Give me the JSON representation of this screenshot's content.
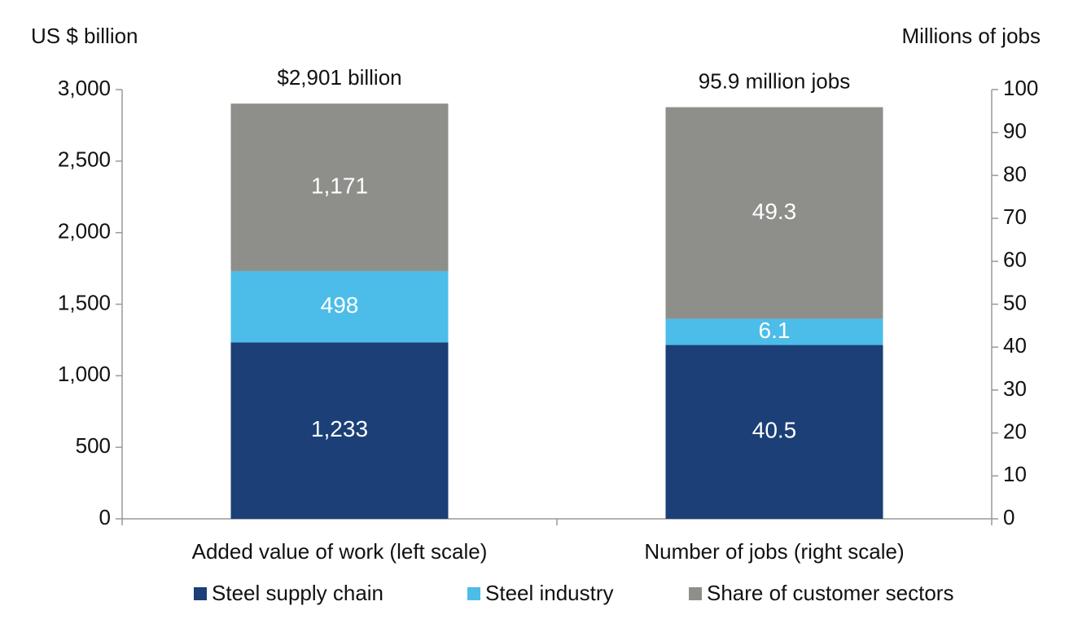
{
  "chart_data": {
    "type": "stacked_bar",
    "y_axis_label": "US $ billion",
    "y2_axis_label": "Millions of jobs",
    "categories": [
      "Added value of work (left scale)",
      "Number of jobs (right scale)"
    ],
    "category_axes": [
      "y",
      "y2"
    ],
    "annotations": [
      "$2,901 billion",
      "95.9 million jobs"
    ],
    "series": [
      {
        "name": "Steel supply chain",
        "color": "#1b3f76",
        "values": [
          1233,
          40.5
        ],
        "value_labels": [
          "1,233",
          "40.5"
        ]
      },
      {
        "name": "Steel industry",
        "color": "#4cbde8",
        "values": [
          498,
          6.1
        ],
        "value_labels": [
          "498",
          "6.1"
        ]
      },
      {
        "name": "Share of customer sectors",
        "color": "#8e8e8a",
        "values": [
          1171,
          49.3
        ],
        "value_labels": [
          "1,171",
          "49.3"
        ]
      }
    ],
    "ylim": [
      0,
      3000
    ],
    "yticks": [
      0,
      500,
      {
        "value": 1000,
        "label": "1,000"
      },
      {
        "value": 1500,
        "label": "1,500"
      },
      {
        "value": 2000,
        "label": "2,000"
      },
      {
        "value": 2500,
        "label": "2,500"
      },
      {
        "value": 3000,
        "label": "3,000"
      }
    ],
    "y2lim": [
      0,
      100
    ],
    "y2ticks": [
      0,
      10,
      20,
      30,
      40,
      50,
      60,
      70,
      80,
      90,
      100
    ],
    "legend": "bottom"
  }
}
